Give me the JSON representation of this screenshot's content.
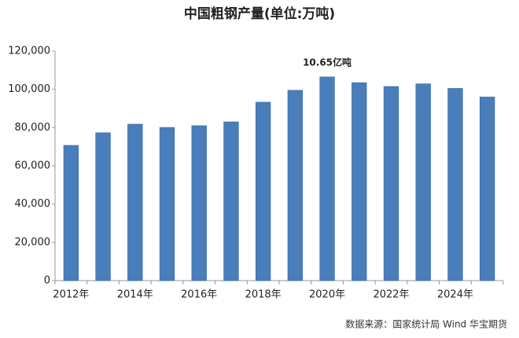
{
  "chart_data": {
    "type": "bar",
    "title": "中国粗钢产量(单位:万吨)",
    "source": "数据来源：国家统计局 Wind 华宝期货",
    "annotation": "10.65亿吨",
    "categories": [
      "2012年",
      null,
      "2014年",
      null,
      "2016年",
      null,
      "2018年",
      null,
      "2020年",
      null,
      "2022年",
      null,
      "2024年",
      null
    ],
    "values": [
      70700,
      77300,
      81800,
      80100,
      81000,
      83000,
      93300,
      99500,
      106500,
      103500,
      101500,
      102900,
      100500,
      96000
    ],
    "color": "#4a7ebb",
    "ylim": [
      0,
      120000
    ],
    "yticks": [
      0,
      {
        "value": 20000,
        "label": "20,000"
      },
      {
        "value": 40000,
        "label": "40,000"
      },
      {
        "value": 60000,
        "label": "60,000"
      },
      {
        "value": 80000,
        "label": "80,000"
      },
      {
        "value": 100000,
        "label": "100,000"
      },
      {
        "value": 120000,
        "label": "120,000"
      }
    ],
    "grid": false
  }
}
